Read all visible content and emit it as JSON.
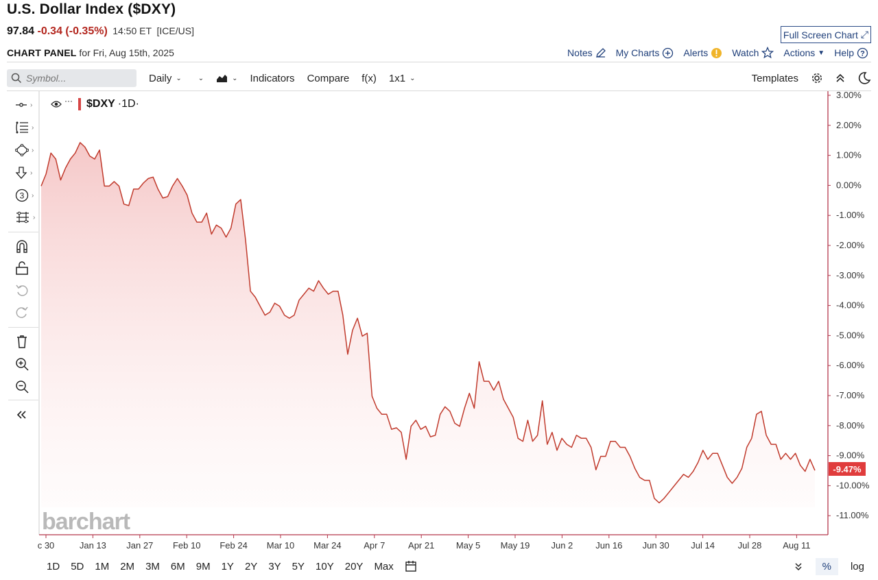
{
  "header": {
    "title": "U.S. Dollar Index ($DXY)",
    "price": "97.84",
    "change": "-0.34 (-0.35%)",
    "time": "14:50 ET",
    "exchange": "[ICE/US]",
    "full_screen": "Full Screen Chart"
  },
  "panel": {
    "label": "CHART PANEL",
    "date": "for Fri, Aug 15th, 2025"
  },
  "links": {
    "notes": "Notes",
    "my_charts": "My Charts",
    "alerts": "Alerts",
    "watch": "Watch",
    "actions": "Actions",
    "help": "Help"
  },
  "toolbar": {
    "search_placeholder": "Symbol...",
    "interval": "Daily",
    "indicators": "Indicators",
    "compare": "Compare",
    "fx": "f(x)",
    "layout": "1x1",
    "templates": "Templates"
  },
  "legend": {
    "symbol": "$DXY",
    "interval": "·1D·",
    "dots": "···"
  },
  "watermark": "barchart",
  "last_value_tag": "-9.47%",
  "ranges": [
    "1D",
    "5D",
    "1M",
    "2M",
    "3M",
    "6M",
    "9M",
    "1Y",
    "2Y",
    "3Y",
    "5Y",
    "10Y",
    "20Y",
    "Max"
  ],
  "scale": {
    "percent": "%",
    "log": "log"
  },
  "colors": {
    "line": "#c0392b",
    "accent": "#1f3f7a",
    "tag": "#e03c3c"
  },
  "chart_data": {
    "type": "area",
    "ylabel": "",
    "y_ticks": [
      "3.00%",
      "2.00%",
      "1.00%",
      "0.00%",
      "-1.00%",
      "-2.00%",
      "-3.00%",
      "-4.00%",
      "-5.00%",
      "-6.00%",
      "-7.00%",
      "-8.00%",
      "-9.00%",
      "-10.00%",
      "-11.00%"
    ],
    "x_ticks": [
      "c 30",
      "Jan 13",
      "Jan 27",
      "Feb 10",
      "Feb 24",
      "Mar 10",
      "Mar 24",
      "Apr 7",
      "Apr 21",
      "May 5",
      "May 19",
      "Jun 2",
      "Jun 16",
      "Jun 30",
      "Jul 14",
      "Jul 28",
      "Aug 11"
    ],
    "ylim": [
      -11.5,
      3.2
    ],
    "values": [
      0.0,
      0.4,
      1.1,
      0.9,
      0.2,
      0.6,
      0.9,
      1.1,
      1.45,
      1.3,
      1.0,
      0.9,
      1.2,
      0.0,
      0.0,
      0.15,
      0.0,
      -0.6,
      -0.65,
      -0.1,
      -0.1,
      0.1,
      0.25,
      0.3,
      -0.1,
      -0.4,
      -0.35,
      0.0,
      0.25,
      0.0,
      -0.3,
      -0.9,
      -1.2,
      -1.2,
      -0.9,
      -1.6,
      -1.3,
      -1.4,
      -1.7,
      -1.4,
      -0.6,
      -0.45,
      -1.8,
      -3.5,
      -3.7,
      -4.0,
      -4.3,
      -4.2,
      -3.9,
      -4.0,
      -4.3,
      -4.4,
      -4.3,
      -3.8,
      -3.6,
      -3.4,
      -3.5,
      -3.15,
      -3.4,
      -3.6,
      -3.5,
      -3.5,
      -4.3,
      -5.6,
      -4.8,
      -4.4,
      -5.0,
      -4.9,
      -7.0,
      -7.4,
      -7.6,
      -7.6,
      -8.1,
      -8.05,
      -8.2,
      -9.1,
      -8.0,
      -7.8,
      -8.1,
      -8.0,
      -8.35,
      -8.3,
      -7.6,
      -7.35,
      -7.5,
      -7.9,
      -8.0,
      -7.4,
      -6.9,
      -7.4,
      -5.85,
      -6.5,
      -6.5,
      -6.8,
      -6.5,
      -7.1,
      -7.4,
      -7.7,
      -8.4,
      -8.5,
      -7.8,
      -8.5,
      -8.3,
      -7.15,
      -8.6,
      -8.2,
      -8.8,
      -8.4,
      -8.6,
      -8.7,
      -8.3,
      -8.4,
      -8.4,
      -8.7,
      -9.45,
      -9.0,
      -9.0,
      -8.5,
      -8.5,
      -8.7,
      -8.7,
      -9.0,
      -9.4,
      -9.7,
      -9.8,
      -9.8,
      -10.4,
      -10.55,
      -10.4,
      -10.2,
      -10.0,
      -9.8,
      -9.6,
      -9.7,
      -9.5,
      -9.2,
      -8.8,
      -9.1,
      -8.9,
      -8.9,
      -9.3,
      -9.7,
      -9.9,
      -9.7,
      -9.4,
      -8.7,
      -8.4,
      -7.6,
      -7.5,
      -8.3,
      -8.6,
      -8.6,
      -9.1,
      -8.9,
      -9.1,
      -8.9,
      -9.3,
      -9.5,
      -9.1,
      -9.47
    ]
  }
}
